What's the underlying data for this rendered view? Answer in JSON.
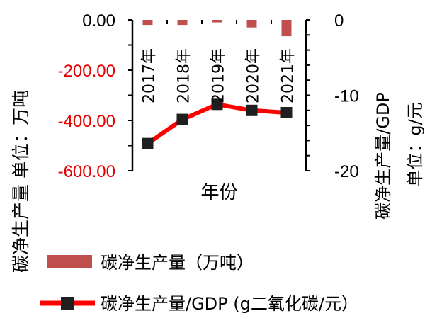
{
  "chart_data": {
    "type": "bar",
    "categories": [
      "2017年",
      "2018年",
      "2019年",
      "2020年",
      "2021年"
    ],
    "xlabel": "年份",
    "series": [
      {
        "name": "碳净生产量（万吨）",
        "kind": "bar",
        "axis": "left",
        "color": "#c0504d",
        "values": [
          -20,
          -20,
          -10,
          -30,
          -65
        ]
      },
      {
        "name": "碳净生产量/GDP (g二氧化碳/元）",
        "kind": "line",
        "axis": "right",
        "color": "#ff0000",
        "marker_color": "#1f1f1f",
        "values": [
          -16.4,
          -13.2,
          -11.2,
          -12.0,
          -12.3
        ]
      }
    ],
    "left_axis": {
      "label": "碳净生产量 单位：万吨",
      "ylim": [
        -600,
        0
      ],
      "ticks": [
        "0.00",
        "-200.00",
        "-400.00",
        "-600.00"
      ],
      "tick_values": [
        0,
        -200,
        -400,
        -600
      ],
      "tick_colors": [
        "#000000",
        "#e60000",
        "#e60000",
        "#e60000"
      ]
    },
    "right_axis": {
      "label_line1": "碳净生产量/GDP",
      "label_line2": "单位：g/元",
      "ylim": [
        -20,
        0
      ],
      "ticks": [
        "0",
        "-10",
        "-20"
      ],
      "tick_values": [
        0,
        -10,
        -20
      ]
    },
    "legend": {
      "placement": "bottom"
    }
  }
}
